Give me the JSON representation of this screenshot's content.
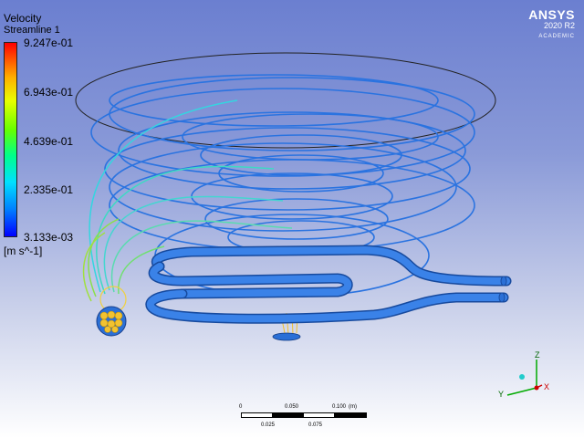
{
  "legend": {
    "title": "Velocity",
    "subtitle": "Streamline 1",
    "ticks": [
      "9.247e-01",
      "6.943e-01",
      "4.639e-01",
      "2.335e-01",
      "3.133e-03"
    ],
    "unit": "[m s^-1]"
  },
  "logo": {
    "brand": "ANSYS",
    "version": "2020 R2",
    "edition": "ACADEMIC"
  },
  "scale": {
    "top_labels": [
      "0",
      "0.050",
      "0.100",
      "(m)"
    ],
    "bottom_labels": [
      "0.025",
      "0.075"
    ]
  },
  "axes": {
    "z": "Z",
    "y": "Y",
    "x": "X"
  },
  "colors": {
    "streamline_blue": "#1f6fe0",
    "streamline_cyan": "#2bd8e8",
    "streamline_yellow": "#f0d040",
    "coil": "#2a6fd6"
  }
}
